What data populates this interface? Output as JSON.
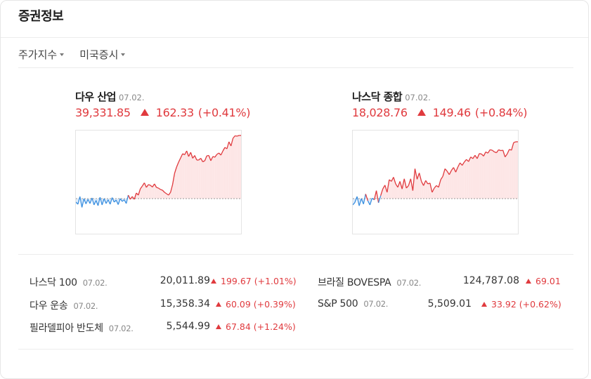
{
  "title": "증권정보",
  "tabs": [
    {
      "label": "주가지수"
    },
    {
      "label": "미국증시"
    }
  ],
  "main_indices": [
    {
      "name": "다우 산업",
      "date": "07.02.",
      "value": "39,331.85",
      "change": "162.33",
      "rate": "(+0.41%)",
      "direction": "up",
      "color": "#e03a3e"
    },
    {
      "name": "나스닥 종합",
      "date": "07.02.",
      "value": "18,028.76",
      "change": "149.46",
      "rate": "(+0.84%)",
      "direction": "up",
      "color": "#e03a3e"
    }
  ],
  "sparklines": [
    [
      50,
      44,
      66,
      35,
      60,
      45,
      58,
      46,
      62,
      42,
      55,
      40,
      64,
      42,
      60,
      46,
      57,
      44,
      63,
      50,
      56,
      43,
      60,
      52,
      57,
      46,
      70,
      58,
      66,
      58,
      76,
      70,
      88,
      96,
      105,
      92,
      100,
      98,
      93,
      102,
      92,
      90,
      86,
      84,
      78,
      74,
      70,
      78,
      100,
      132,
      150,
      164,
      176,
      188,
      185,
      196,
      180,
      192,
      175,
      183,
      170,
      170,
      175,
      165,
      168,
      182,
      183,
      168,
      180,
      178,
      186,
      190,
      184,
      196,
      206,
      202,
      222,
      210,
      232,
      239,
      238,
      240,
      240
    ],
    [
      10,
      16,
      30,
      8,
      25,
      12,
      36,
      20,
      10,
      26,
      22,
      44,
      15,
      32,
      48,
      57,
      40,
      70,
      66,
      76,
      60,
      52,
      66,
      48,
      72,
      50,
      56,
      72,
      44,
      96,
      71,
      86,
      66,
      56,
      68,
      60,
      62,
      40,
      50,
      56,
      52,
      70,
      78,
      96,
      90,
      82,
      92,
      99,
      88,
      100,
      110,
      104,
      112,
      118,
      113,
      124,
      120,
      128,
      120,
      132,
      131,
      126,
      136,
      133,
      141,
      140,
      136,
      134,
      141,
      139,
      140,
      124,
      131,
      142,
      140,
      158,
      160,
      160
    ]
  ],
  "other_indices": [
    {
      "name": "나스닥 100",
      "date": "07.02.",
      "value": "20,011.89",
      "change": "199.67",
      "rate": "(+1.01%)"
    },
    {
      "name": "다우 운송",
      "date": "07.02.",
      "value": "15,358.34",
      "change": "60.09",
      "rate": "(+0.39%)"
    },
    {
      "name": "필라델피아 반도체",
      "date": "07.02.",
      "value": "5,544.99",
      "change": "67.84",
      "rate": "(+1.24%)"
    },
    {
      "name": "브라질 BOVESPA",
      "date": "07.02.",
      "value": "124,787.08",
      "change": "69.01",
      "rate": ""
    },
    {
      "name": "S&P 500",
      "date": "07.02.",
      "value": "5,509.01",
      "change": "33.92",
      "rate": "(+0.62%)"
    }
  ],
  "colors": {
    "up": "#e03a3e",
    "down": "#3a8fe0",
    "up_fill": "#fde6e6",
    "down_fill": "#deecfb",
    "baseline": "#999999"
  }
}
